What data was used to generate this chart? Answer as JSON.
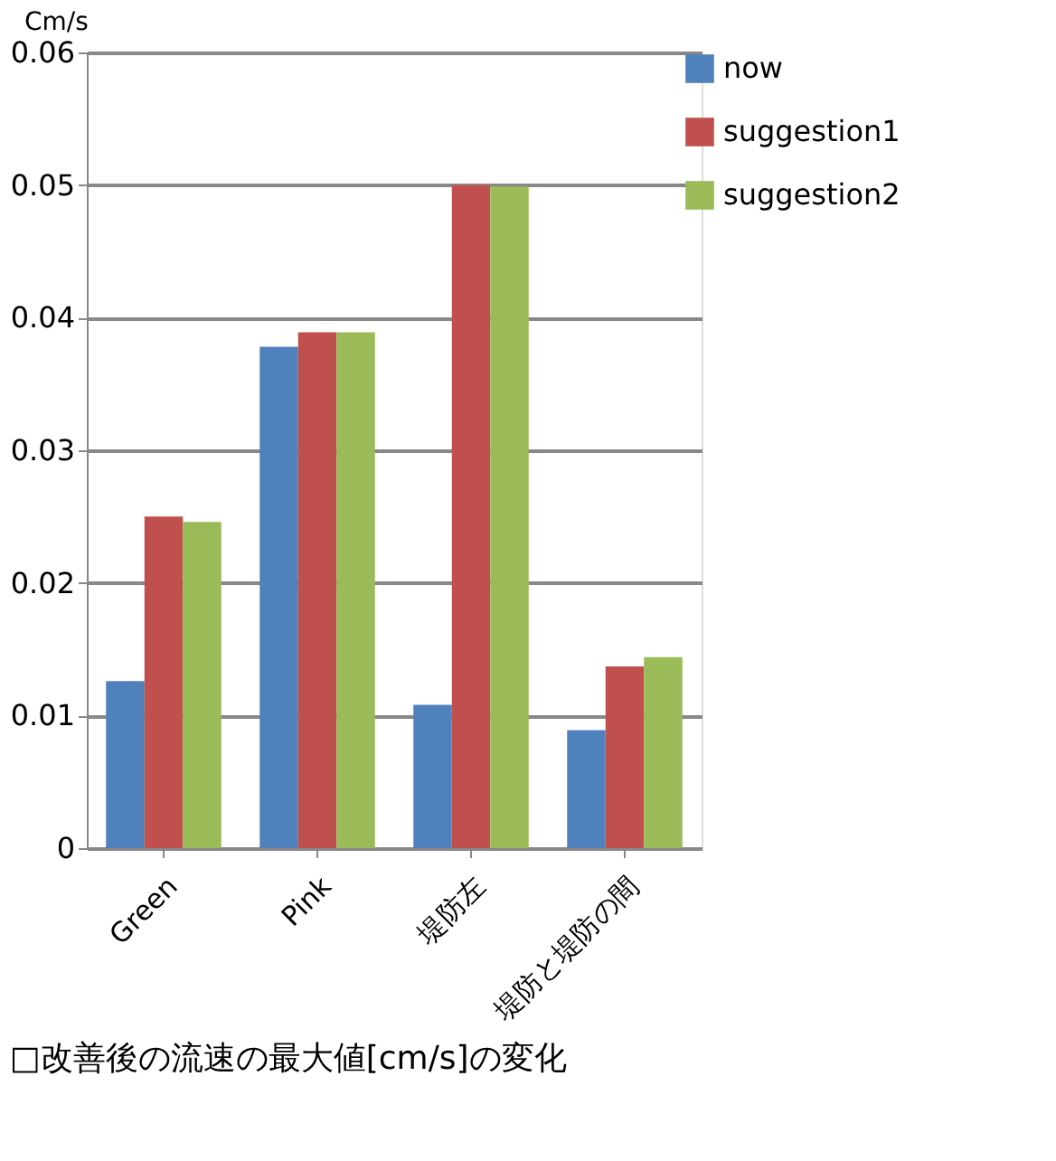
{
  "chart_data": {
    "type": "bar",
    "ylabel": "Cm/s",
    "categories": [
      "Green",
      "Pink",
      "堤防左",
      "堤防と堤防の間"
    ],
    "series": [
      {
        "name": "now",
        "color": "#4f81bd",
        "values": [
          0.0126,
          0.0378,
          0.0108,
          0.0089
        ]
      },
      {
        "name": "suggestion1",
        "color": "#c0504d",
        "values": [
          0.025,
          0.0389,
          0.05,
          0.0137
        ]
      },
      {
        "name": "suggestion2",
        "color": "#9bbb59",
        "values": [
          0.0246,
          0.0389,
          0.0499,
          0.0144
        ]
      }
    ],
    "ylim": [
      0,
      0.06
    ],
    "yticks": [
      {
        "value": 0,
        "label": "0"
      },
      0.01,
      0.02,
      0.03,
      0.04,
      0.05,
      0.06
    ],
    "grid": "y",
    "legend": "right",
    "annotations": [
      "□改善後の流速の最大値[cm/s]の変化"
    ]
  }
}
